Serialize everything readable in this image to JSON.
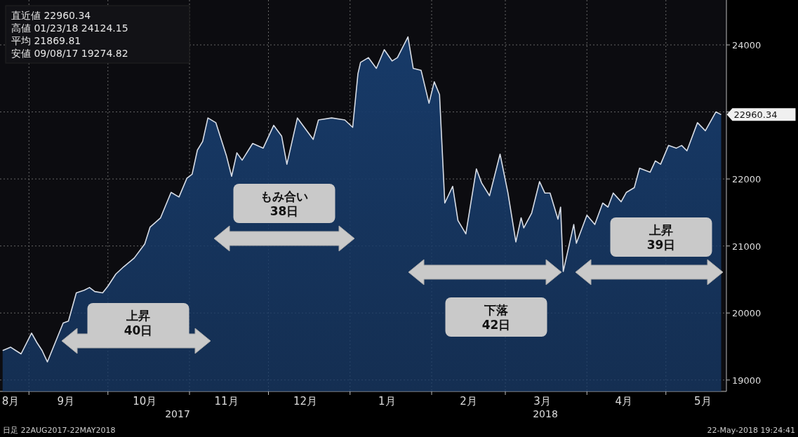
{
  "chart_data": {
    "type": "area",
    "x": [
      "2017-08-22",
      "2017-08-25",
      "2017-08-27",
      "2017-08-29",
      "2017-09-02",
      "2017-09-04",
      "2017-09-06",
      "2017-09-08",
      "2017-09-14",
      "2017-09-16",
      "2017-09-19",
      "2017-09-22",
      "2017-09-24",
      "2017-09-26",
      "2017-09-29",
      "2017-10-01",
      "2017-10-04",
      "2017-10-07",
      "2017-10-11",
      "2017-10-15",
      "2017-10-17",
      "2017-10-21",
      "2017-10-25",
      "2017-10-28",
      "2017-10-31",
      "2017-11-02",
      "2017-11-04",
      "2017-11-06",
      "2017-11-08",
      "2017-11-11",
      "2017-11-15",
      "2017-11-17",
      "2017-11-19",
      "2017-11-21",
      "2017-11-25",
      "2017-11-29",
      "2017-12-03",
      "2017-12-06",
      "2017-12-08",
      "2017-12-12",
      "2017-12-18",
      "2017-12-20",
      "2017-12-25",
      "2017-12-30",
      "2018-01-02",
      "2018-01-04",
      "2018-01-05",
      "2018-01-08",
      "2018-01-11",
      "2018-01-14",
      "2018-01-17",
      "2018-01-19",
      "2018-01-23",
      "2018-01-25",
      "2018-01-28",
      "2018-01-31",
      "2018-02-02",
      "2018-02-04",
      "2018-02-06",
      "2018-02-09",
      "2018-02-11",
      "2018-02-14",
      "2018-02-18",
      "2018-02-20",
      "2018-02-23",
      "2018-02-27",
      "2018-03-02",
      "2018-03-05",
      "2018-03-07",
      "2018-03-08",
      "2018-03-11",
      "2018-03-14",
      "2018-03-16",
      "2018-03-18",
      "2018-03-21",
      "2018-03-22",
      "2018-03-23",
      "2018-03-27",
      "2018-03-28",
      "2018-04-01",
      "2018-04-04",
      "2018-04-07",
      "2018-04-09",
      "2018-04-11",
      "2018-04-14",
      "2018-04-16",
      "2018-04-19",
      "2018-04-21",
      "2018-04-25",
      "2018-04-27",
      "2018-04-29",
      "2018-05-02",
      "2018-05-05",
      "2018-05-07",
      "2018-05-09",
      "2018-05-13",
      "2018-05-16",
      "2018-05-20",
      "2018-05-22"
    ],
    "series": [
      {
        "color": "#173a68",
        "values": [
          19440,
          19490,
          19440,
          19390,
          19700,
          19560,
          19440,
          19270,
          19850,
          19880,
          20300,
          20340,
          20380,
          20320,
          20300,
          20400,
          20580,
          20690,
          20820,
          21030,
          21280,
          21420,
          21800,
          21730,
          22010,
          22070,
          22430,
          22560,
          22910,
          22840,
          22350,
          22040,
          22390,
          22280,
          22530,
          22460,
          22800,
          22640,
          22220,
          22910,
          22590,
          22880,
          22910,
          22880,
          22770,
          23570,
          23740,
          23810,
          23650,
          23930,
          23760,
          23810,
          24120,
          23650,
          23620,
          23130,
          23450,
          23260,
          21640,
          21890,
          21380,
          21180,
          22150,
          21940,
          21750,
          22370,
          21790,
          21060,
          21420,
          21270,
          21490,
          21960,
          21790,
          21790,
          21400,
          21580,
          20620,
          21320,
          21040,
          21460,
          21320,
          21640,
          21580,
          21790,
          21660,
          21800,
          21870,
          22160,
          22100,
          22270,
          22220,
          22500,
          22460,
          22500,
          22420,
          22840,
          22720,
          23000,
          22960
        ]
      }
    ],
    "xlim": [
      "2017-08-21",
      "2018-05-24"
    ],
    "xticks": [
      {
        "value": "2017-09-01",
        "label": null
      },
      {
        "value": "2017-10-01",
        "label": null
      },
      {
        "value": "2017-11-01",
        "label": null
      },
      {
        "value": "2017-12-01",
        "label": null
      },
      {
        "value": "2018-01-01",
        "label": null
      },
      {
        "value": "2018-02-01",
        "label": null
      },
      {
        "value": "2018-03-01",
        "label": null
      },
      {
        "value": "2018-04-01",
        "label": null
      },
      {
        "value": "2018-05-01",
        "label": null
      },
      {
        "value": "2017-08-25",
        "label": "8月"
      },
      {
        "value": "2017-09-15",
        "label": "9月"
      },
      {
        "value": "2017-10-15",
        "label": "10月"
      },
      {
        "value": "2017-11-15",
        "label": "11月"
      },
      {
        "value": "2017-12-15",
        "label": "12月"
      },
      {
        "value": "2018-01-15",
        "label": "1月"
      },
      {
        "value": "2018-02-15",
        "label": "2月"
      },
      {
        "value": "2018-03-15",
        "label": "3月"
      },
      {
        "value": "2018-04-15",
        "label": "4月"
      },
      {
        "value": "2018-05-15",
        "label": "5月"
      }
    ],
    "ylim": [
      18830,
      24670
    ],
    "yticks": [
      19000,
      20000,
      21000,
      22000,
      {
        "value": 23000,
        "label": null
      },
      24000
    ],
    "grid": true,
    "annotations": [
      "直近値 22960.34",
      "高値 01/23/18 24124.15",
      "平均 21869.81",
      "安値 09/08/17 19274.82",
      "日足 22AUG2017-22MAY2018",
      "22-May-2018 19:24:41",
      "2017",
      "2018",
      {
        "text": "22960.34",
        "x": "2018-05-22",
        "y": 22960.34
      },
      "上昇\n40日",
      "もみ合い\n38日",
      "下落\n42日",
      "上昇\n39日"
    ]
  }
}
